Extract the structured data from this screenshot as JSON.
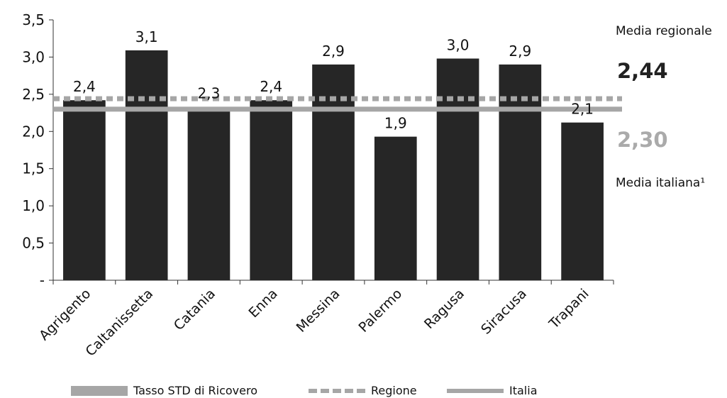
{
  "chart_data": {
    "type": "bar",
    "categories": [
      "Agrigento",
      "Caltanissetta",
      "Catania",
      "Enna",
      "Messina",
      "Palermo",
      "Ragusa",
      "Siracusa",
      "Trapani"
    ],
    "values": [
      2.42,
      3.09,
      2.33,
      2.42,
      2.9,
      1.93,
      2.98,
      2.9,
      2.12
    ],
    "value_labels": [
      "2,4",
      "3,1",
      "2,3",
      "2,4",
      "2,9",
      "1,9",
      "3,0",
      "2,9",
      "2,1"
    ],
    "ylim": [
      0,
      3.5
    ],
    "yticks": [
      0,
      0.5,
      1.0,
      1.5,
      2.0,
      2.5,
      3.0,
      3.5
    ],
    "ytick_labels": [
      "-",
      "0,5",
      "1,0",
      "1,5",
      "2,0",
      "2,5",
      "3,0",
      "3,5"
    ],
    "reference_lines": [
      {
        "name": "Regione",
        "value": 2.44,
        "style": "dashed"
      },
      {
        "name": "Italia",
        "value": 2.3,
        "style": "solid"
      }
    ],
    "bar_color": "#262626",
    "line_color": "#a6a6a6",
    "grid": false,
    "legend_position": "bottom"
  },
  "annotations": {
    "regional_label": "Media regionale",
    "regional_value": "2,44",
    "italian_value": "2,30",
    "italian_label": "Media italiana¹"
  },
  "legend": {
    "items": [
      {
        "label": "Tasso  STD di Ricovero",
        "kind": "bar"
      },
      {
        "label": "Regione",
        "kind": "dashed"
      },
      {
        "label": "Italia",
        "kind": "line"
      }
    ]
  }
}
